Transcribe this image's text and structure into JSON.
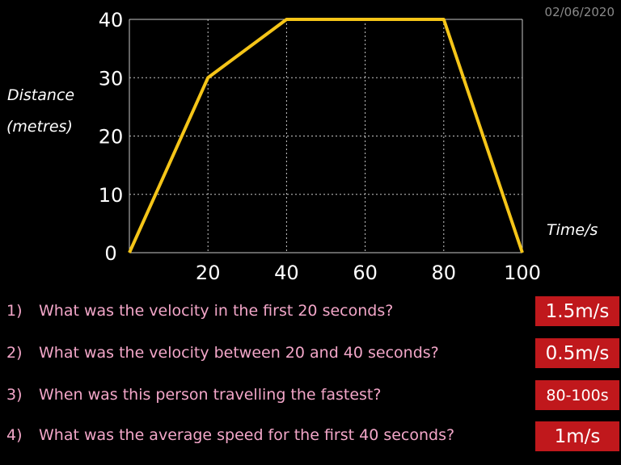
{
  "date": "02/06/2020",
  "chart_data": {
    "type": "line",
    "title": "",
    "xlabel": "Time/s",
    "ylabel_lines": [
      "Distance",
      "(metres)"
    ],
    "x": [
      0,
      20,
      40,
      80,
      100
    ],
    "series": [
      {
        "values": [
          0,
          30,
          40,
          40,
          0
        ]
      }
    ],
    "xlim": [
      0,
      100
    ],
    "ylim": [
      0,
      40
    ],
    "xticks": [
      20,
      40,
      60,
      80,
      100
    ],
    "yticks": [
      0,
      10,
      20,
      30,
      40
    ],
    "grid": true,
    "line_color": "#f5c518",
    "grid_color": "#c8c8c8"
  },
  "questions": [
    {
      "number": "1)",
      "text": "What was the velocity in the first 20 seconds?",
      "answer": "1.5m/s"
    },
    {
      "number": "2)",
      "text": "What was the velocity between 20 and 40 seconds?",
      "answer": "0.5m/s"
    },
    {
      "number": "3)",
      "text": "When was this person travelling the fastest?",
      "answer": "80-100s"
    },
    {
      "number": "4)",
      "text": "What was the average speed for the first 40 seconds?",
      "answer": "1m/s"
    }
  ],
  "colors": {
    "question_text": "#f2a6c8",
    "answer_box": "#c0181c",
    "date_text": "#8a8a8a"
  }
}
